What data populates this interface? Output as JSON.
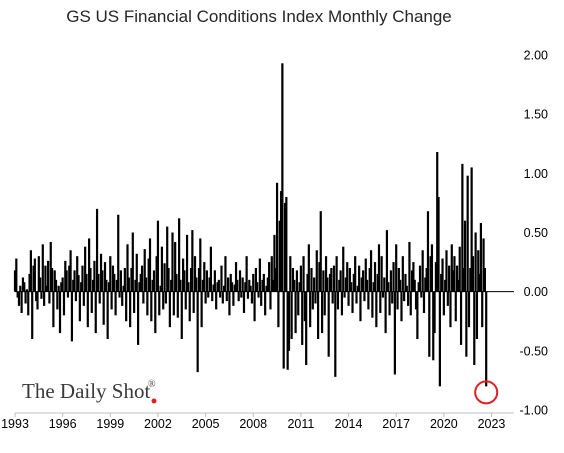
{
  "chart_data": {
    "type": "bar",
    "title": "GS US Financial Conditions Index Monthly Change",
    "xlabel": "",
    "ylabel": "",
    "x_ticks": [
      "1993",
      "1996",
      "1999",
      "2002",
      "2005",
      "2008",
      "2011",
      "2014",
      "2017",
      "2020",
      "2023"
    ],
    "y_ticks": [
      "2.00",
      "1.50",
      "1.00",
      "0.50",
      "0.00",
      "-0.50",
      "-1.00"
    ],
    "ylim": [
      -1.0,
      2.0
    ],
    "xlim": [
      "1993-01",
      "2024-06"
    ],
    "bar_color": "#000000",
    "grid": false,
    "baseline": 0.0,
    "series": [
      {
        "start": "1993-01",
        "frequency": "monthly",
        "values": [
          0.18,
          0.28,
          -0.05,
          -0.12,
          0.05,
          -0.18,
          0.12,
          0.08,
          -0.1,
          0.02,
          -0.2,
          0.15,
          0.35,
          -0.4,
          0.22,
          0.28,
          -0.08,
          -0.15,
          0.3,
          0.12,
          -0.06,
          0.4,
          -0.12,
          0.22,
          0.05,
          0.26,
          -0.1,
          0.42,
          0.2,
          -0.3,
          0.18,
          0.1,
          -0.15,
          0.05,
          -0.35,
          0.08,
          0.12,
          -0.2,
          0.26,
          0.18,
          -0.05,
          0.22,
          0.35,
          -0.42,
          0.1,
          0.18,
          -0.08,
          0.3,
          0.14,
          -0.25,
          0.08,
          0.22,
          -0.12,
          0.38,
          0.15,
          -0.3,
          0.45,
          0.2,
          -0.18,
          0.1,
          0.26,
          -0.35,
          0.7,
          0.15,
          -0.1,
          0.32,
          0.18,
          -0.28,
          0.25,
          0.1,
          -0.4,
          0.08,
          0.3,
          -0.15,
          0.22,
          0.15,
          -0.2,
          0.1,
          0.65,
          -0.05,
          0.18,
          -0.12,
          0.05,
          0.2,
          -0.25,
          0.4,
          0.12,
          -0.3,
          0.2,
          0.5,
          -0.18,
          0.1,
          0.32,
          -0.45,
          0.08,
          0.15,
          0.22,
          -0.1,
          0.36,
          0.12,
          -0.2,
          0.28,
          0.45,
          -0.25,
          0.1,
          0.18,
          -0.35,
          0.3,
          0.6,
          -0.2,
          0.05,
          0.38,
          -0.15,
          0.24,
          -0.1,
          0.55,
          0.2,
          -0.3,
          0.1,
          0.5,
          -0.2,
          0.42,
          0.15,
          -0.22,
          0.62,
          0.1,
          -0.4,
          0.28,
          0.18,
          -0.15,
          0.48,
          0.08,
          -0.25,
          0.2,
          0.52,
          -0.18,
          0.3,
          0.12,
          -0.68,
          0.2,
          0.45,
          -0.3,
          0.1,
          0.25,
          -0.1,
          0.18,
          -0.05,
          0.12,
          0.38,
          -0.08,
          0.06,
          0.18,
          -0.15,
          0.08,
          0.1,
          -0.05,
          0.22,
          -0.1,
          0.05,
          0.3,
          -0.08,
          0.12,
          -0.2,
          0.15,
          0.08,
          -0.12,
          0.06,
          0.25,
          0.1,
          -0.08,
          0.18,
          -0.05,
          0.12,
          -0.18,
          0.08,
          0.3,
          -0.06,
          0.1,
          0.05,
          -0.1,
          0.15,
          -0.25,
          0.2,
          0.08,
          -0.05,
          0.28,
          -0.12,
          0.1,
          0.15,
          -0.2,
          0.05,
          0.12,
          0.25,
          -0.15,
          0.3,
          0.1,
          0.48,
          0.2,
          0.92,
          -0.3,
          0.6,
          0.85,
          1.93,
          -0.65,
          0.75,
          0.8,
          -0.66,
          -0.5,
          0.3,
          -0.4,
          0.2,
          0.1,
          -0.35,
          0.18,
          -0.2,
          0.08,
          0.22,
          -0.45,
          0.3,
          -0.25,
          -0.62,
          0.15,
          0.4,
          -0.3,
          0.2,
          -0.15,
          0.12,
          -0.1,
          0.35,
          -0.4,
          0.25,
          0.68,
          -0.35,
          0.18,
          -0.2,
          0.3,
          0.12,
          -0.55,
          0.15,
          0.2,
          -0.1,
          0.22,
          -0.72,
          0.3,
          -0.15,
          0.1,
          0.18,
          -0.2,
          0.38,
          -0.05,
          0.12,
          0.25,
          -0.12,
          0.2,
          0.08,
          -0.18,
          0.15,
          0.3,
          -0.1,
          0.05,
          0.22,
          -0.25,
          0.12,
          0.18,
          -0.08,
          0.28,
          0.1,
          -0.15,
          0.2,
          0.35,
          -0.22,
          0.08,
          0.25,
          -0.3,
          0.15,
          0.4,
          -0.18,
          0.3,
          -0.05,
          0.12,
          -0.35,
          0.52,
          0.08,
          -0.2,
          0.18,
          -0.1,
          0.25,
          -0.7,
          0.4,
          -0.15,
          0.2,
          0.1,
          -0.25,
          0.3,
          -0.08,
          0.15,
          0.05,
          -0.12,
          0.42,
          -0.2,
          0.18,
          0.25,
          0.1,
          -0.15,
          -0.4,
          0.08,
          0.22,
          -0.05,
          0.35,
          -0.18,
          0.12,
          0.2,
          0.68,
          -0.55,
          0.3,
          0.4,
          -0.58,
          -0.35,
          0.25,
          1.18,
          0.8,
          -0.8,
          0.15,
          0.28,
          -0.2,
          0.1,
          0.35,
          -0.12,
          0.22,
          -0.3,
          0.4,
          0.18,
          0.3,
          -0.25,
          0.22,
          0.1,
          0.38,
          -0.45,
          1.08,
          0.2,
          0.6,
          -0.55,
          0.98,
          -0.3,
          0.2,
          1.05,
          0.3,
          -0.62,
          0.5,
          -0.4,
          0.35,
          0.15,
          0.58,
          -0.3,
          0.45,
          0.2,
          -0.8
        ]
      }
    ],
    "annotation": "red circle highlighting most recent bar"
  },
  "logo": {
    "text": "The Daily Shot",
    "mark": "®",
    "accent_color": "#e02020"
  },
  "colors": {
    "bars": "#000000",
    "highlight_circle": "#e02020",
    "axis": "#000000"
  }
}
